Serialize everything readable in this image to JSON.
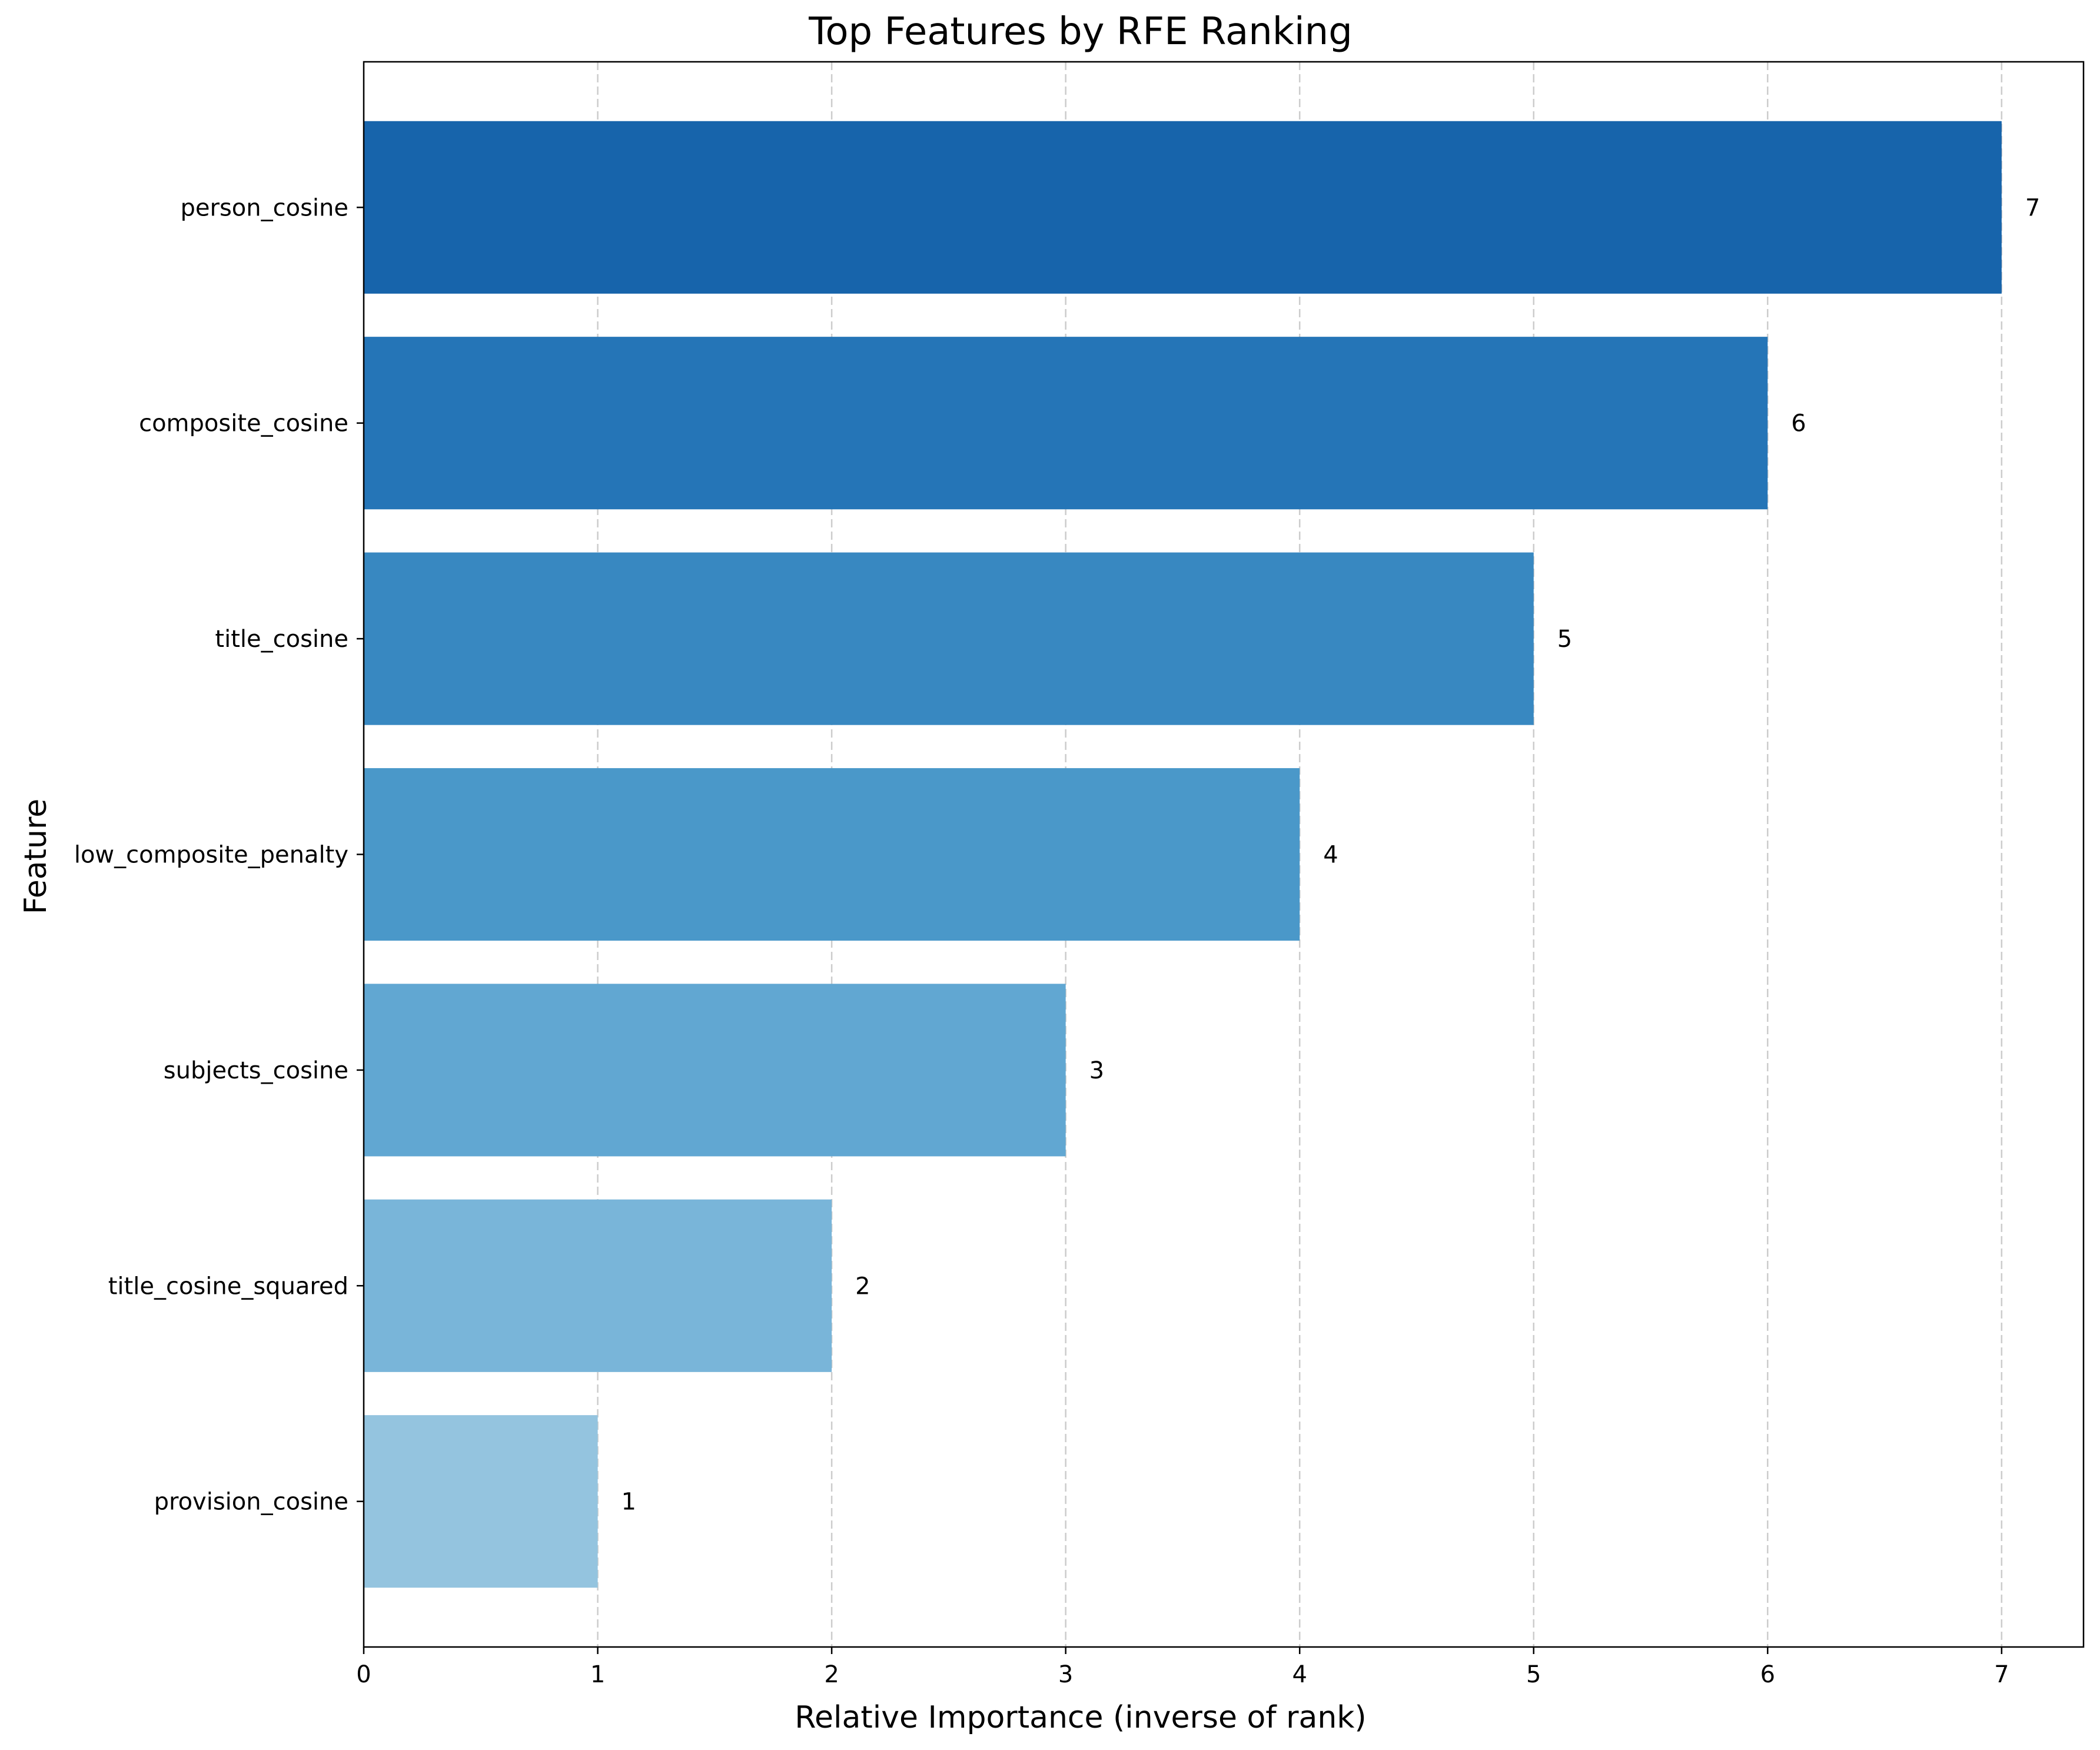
{
  "chart_data": {
    "type": "bar",
    "orientation": "horizontal",
    "title": "Top Features by RFE Ranking",
    "xlabel": "Relative Importance (inverse of rank)",
    "ylabel": "Feature",
    "categories": [
      "person_cosine",
      "composite_cosine",
      "title_cosine",
      "low_composite_penalty",
      "subjects_cosine",
      "title_cosine_squared",
      "provision_cosine"
    ],
    "values": [
      7,
      6,
      5,
      4,
      3,
      2,
      1
    ],
    "data_labels": [
      "7",
      "6",
      "5",
      "4",
      "3",
      "2",
      "1"
    ],
    "colors": [
      "#1764ab",
      "#2575b7",
      "#3888c1",
      "#4a98c9",
      "#61a7d2",
      "#79b5d9",
      "#94c4df"
    ],
    "xlim": [
      0,
      7.35
    ],
    "xticks": [
      0,
      1,
      2,
      3,
      4,
      5,
      6,
      7
    ],
    "xtick_labels": [
      "0",
      "1",
      "2",
      "3",
      "4",
      "5",
      "6",
      "7"
    ],
    "grid": {
      "x": true,
      "y": false,
      "style": "dashed"
    }
  }
}
